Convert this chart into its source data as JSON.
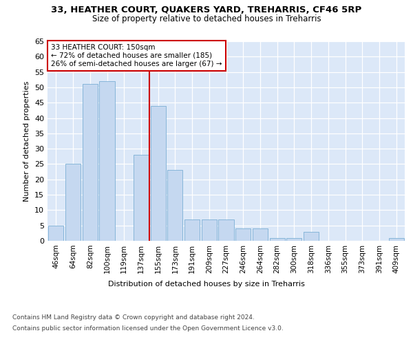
{
  "title1": "33, HEATHER COURT, QUAKERS YARD, TREHARRIS, CF46 5RP",
  "title2": "Size of property relative to detached houses in Treharris",
  "xlabel": "Distribution of detached houses by size in Treharris",
  "ylabel": "Number of detached properties",
  "categories": [
    "46sqm",
    "64sqm",
    "82sqm",
    "100sqm",
    "119sqm",
    "137sqm",
    "155sqm",
    "173sqm",
    "191sqm",
    "209sqm",
    "227sqm",
    "246sqm",
    "264sqm",
    "282sqm",
    "300sqm",
    "318sqm",
    "336sqm",
    "355sqm",
    "373sqm",
    "391sqm",
    "409sqm"
  ],
  "values": [
    5,
    25,
    51,
    52,
    0,
    28,
    44,
    23,
    7,
    7,
    7,
    4,
    4,
    1,
    1,
    3,
    0,
    0,
    0,
    0,
    1
  ],
  "bar_color": "#c5d8f0",
  "bar_edge_color": "#7bafd4",
  "vline_x": 5.5,
  "annotation_line1": "33 HEATHER COURT: 150sqm",
  "annotation_line2": "← 72% of detached houses are smaller (185)",
  "annotation_line3": "26% of semi-detached houses are larger (67) →",
  "vline_color": "#cc0000",
  "annotation_box_edge": "#cc0000",
  "ylim": [
    0,
    65
  ],
  "yticks": [
    0,
    5,
    10,
    15,
    20,
    25,
    30,
    35,
    40,
    45,
    50,
    55,
    60,
    65
  ],
  "background_color": "#ffffff",
  "plot_bg_color": "#dce8f8",
  "grid_color": "#ffffff",
  "footer1": "Contains HM Land Registry data © Crown copyright and database right 2024.",
  "footer2": "Contains public sector information licensed under the Open Government Licence v3.0."
}
